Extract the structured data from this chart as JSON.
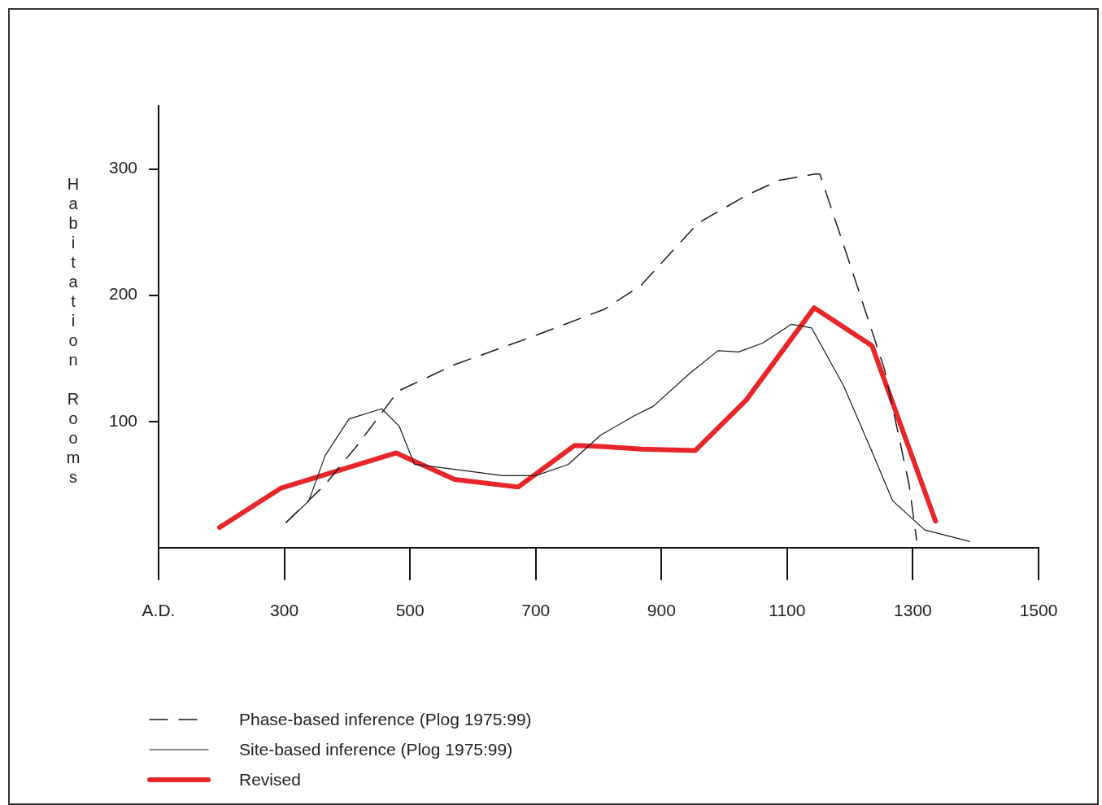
{
  "chart_data": {
    "type": "line",
    "ylabel": "Habitation Rooms",
    "xlim": [
      100,
      1500
    ],
    "ylim": [
      0,
      350
    ],
    "xticks": [
      {
        "value": 100,
        "label": "A.D."
      },
      300,
      500,
      700,
      900,
      1100,
      1300,
      1500
    ],
    "yticks": [
      100,
      200,
      300
    ],
    "grid": false,
    "legend": "bottom",
    "marker": "none",
    "series": [
      {
        "name": "Phase-based inference (Plog 1975:99)",
        "color": "#1a1a1a",
        "line_style": "dashed",
        "x": [
          303,
          365,
          416,
          481,
          571,
          694,
          810,
          868,
          958,
          1035,
          1087,
          1145,
          1152,
          1203,
          1255,
          1294,
          1306
        ],
        "values": [
          20,
          50,
          81,
          124,
          145,
          167,
          189,
          208,
          257,
          279,
          291,
          296,
          296,
          220,
          141,
          50,
          6
        ]
      },
      {
        "name": "Site-based inference (Plog 1975:99)",
        "color": "#1a1a1a",
        "line_style": "solid",
        "x": [
          303,
          339,
          365,
          403,
          455,
          483,
          507,
          571,
          648,
          700,
          752,
          803,
          855,
          887,
          945,
          990,
          1023,
          1061,
          1107,
          1139,
          1190,
          1235,
          1268,
          1319,
          1390
        ],
        "values": [
          20,
          37,
          73,
          102,
          110,
          96,
          66,
          62,
          57,
          57,
          66,
          89,
          104,
          112,
          138,
          156,
          155,
          162,
          177,
          174,
          128,
          76,
          37,
          14,
          5
        ]
      },
      {
        "name": "Revised",
        "color": "#e8262a",
        "line_style": "solid",
        "x": [
          197,
          294,
          478,
          571,
          672,
          762,
          810,
          868,
          954,
          1035,
          1143,
          1235,
          1336
        ],
        "values": [
          16,
          47,
          75,
          54,
          48,
          81,
          80,
          78,
          77,
          117,
          190,
          160,
          21
        ]
      }
    ]
  }
}
